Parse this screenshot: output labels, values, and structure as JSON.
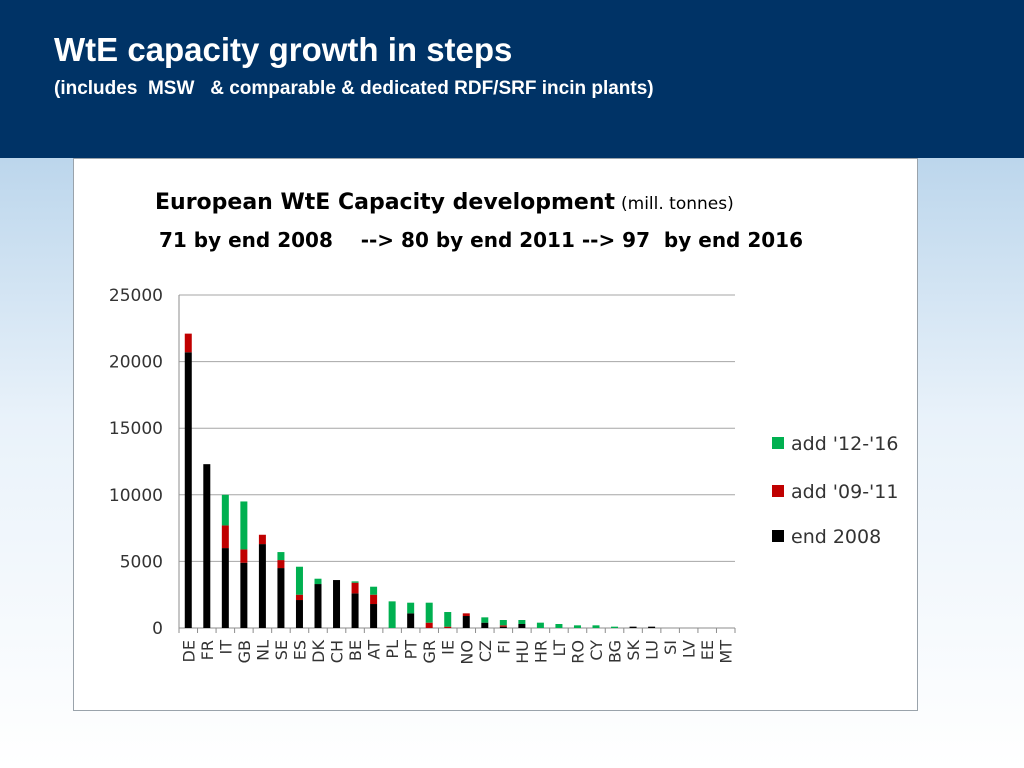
{
  "slide": {
    "title": "WtE capacity growth in steps",
    "subtitle": "(includes  MSW   & comparable & dedicated RDF/SRF incin plants)"
  },
  "colors": {
    "header_bg": "#003366",
    "end_2008": "#000000",
    "add_09_11": "#c00000",
    "add_12_16": "#00b050"
  },
  "chart_data": {
    "type": "bar",
    "stacked": true,
    "title": "European WtE Capacity development",
    "title_unit": "(mill. tonnes)",
    "subtitle": "71 by end 2008    --> 80 by end 2011 --> 97  by end 2016",
    "xlabel": "",
    "ylabel": "",
    "ylim": [
      0,
      25000
    ],
    "yticks": [
      "0",
      "5000",
      "10000",
      "15000",
      "20000",
      "25000"
    ],
    "ytick_values": [
      0,
      5000,
      10000,
      15000,
      20000,
      25000
    ],
    "grid": true,
    "legend_position": "right",
    "categories": [
      "DE",
      "FR",
      "IT",
      "GB",
      "NL",
      "SE",
      "ES",
      "DK",
      "CH",
      "BE",
      "AT",
      "PL",
      "PT",
      "GR",
      "IE",
      "NO",
      "CZ",
      "FI",
      "HU",
      "HR",
      "LT",
      "RO",
      "CY",
      "BG",
      "SK",
      "LU",
      "SI",
      "LV",
      "EE",
      "MT"
    ],
    "series": [
      {
        "name": "end 2008",
        "color": "#000000",
        "values": [
          20700,
          12300,
          6000,
          4900,
          6300,
          4500,
          2100,
          3300,
          3600,
          2600,
          1800,
          0,
          1100,
          0,
          0,
          900,
          400,
          100,
          300,
          0,
          0,
          0,
          0,
          0,
          100,
          100,
          0,
          0,
          0,
          0
        ]
      },
      {
        "name": "add '09-'11",
        "color": "#c00000",
        "values": [
          1400,
          0,
          1700,
          1000,
          700,
          600,
          400,
          0,
          0,
          800,
          700,
          0,
          0,
          400,
          100,
          200,
          0,
          100,
          0,
          0,
          0,
          0,
          0,
          0,
          0,
          0,
          0,
          0,
          0,
          0
        ]
      },
      {
        "name": "add '12-'16",
        "color": "#00b050",
        "values": [
          0,
          0,
          2300,
          3600,
          0,
          600,
          2100,
          400,
          0,
          100,
          600,
          2000,
          800,
          1500,
          1100,
          0,
          400,
          400,
          300,
          400,
          300,
          200,
          200,
          100,
          0,
          0,
          0,
          0,
          0,
          0
        ]
      }
    ],
    "legend": [
      "add '12-'16",
      "add '09-'11",
      "end 2008"
    ]
  }
}
